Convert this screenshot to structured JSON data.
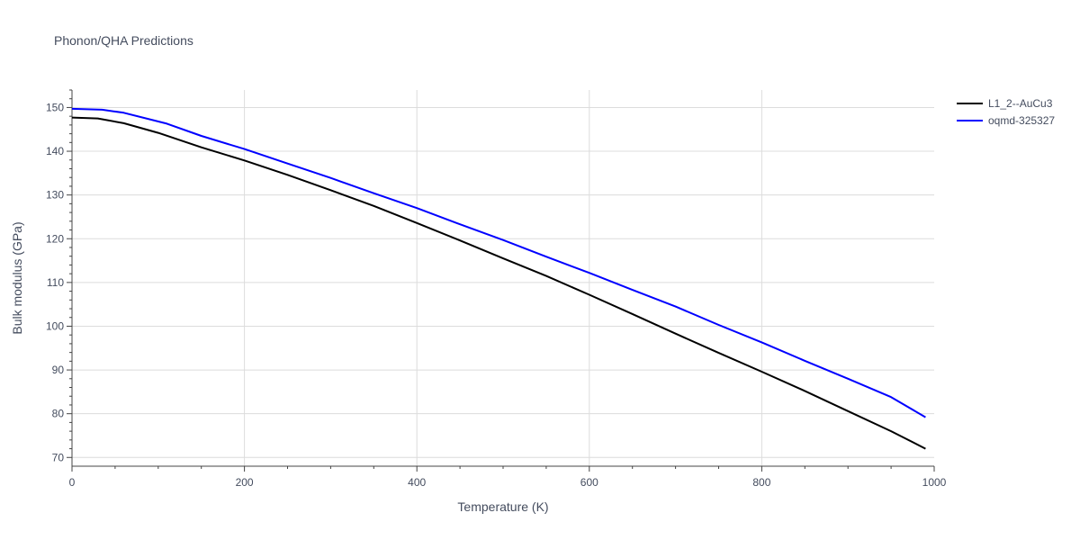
{
  "chart_data": {
    "type": "line",
    "title": "Phonon/QHA Predictions",
    "xlabel": "Temperature (K)",
    "ylabel": "Bulk modulus (GPa)",
    "xlim": [
      0,
      1000
    ],
    "ylim": [
      68,
      154
    ],
    "x_ticks": [
      0,
      200,
      400,
      600,
      800,
      1000
    ],
    "y_ticks": [
      70,
      80,
      90,
      100,
      110,
      120,
      130,
      140,
      150
    ],
    "grid": true,
    "legend_position": "top-right",
    "series": [
      {
        "name": "L1_2--AuCu3",
        "color": "#000000",
        "x": [
          0,
          30,
          60,
          100,
          150,
          200,
          250,
          300,
          350,
          400,
          450,
          500,
          550,
          600,
          650,
          700,
          750,
          800,
          850,
          900,
          950,
          990
        ],
        "y": [
          147.7,
          147.5,
          146.4,
          144.2,
          140.9,
          137.9,
          134.6,
          131.1,
          127.5,
          123.6,
          119.6,
          115.5,
          111.5,
          107.2,
          102.8,
          98.3,
          93.9,
          89.6,
          85.2,
          80.6,
          76.0,
          72.0
        ]
      },
      {
        "name": "oqmd-325327",
        "color": "#0000ff",
        "x": [
          0,
          35,
          60,
          110,
          150,
          200,
          250,
          300,
          350,
          400,
          450,
          500,
          550,
          600,
          650,
          700,
          750,
          800,
          850,
          900,
          950,
          990
        ],
        "y": [
          149.7,
          149.5,
          148.8,
          146.3,
          143.5,
          140.5,
          137.2,
          133.9,
          130.4,
          127.0,
          123.3,
          119.7,
          115.9,
          112.2,
          108.3,
          104.5,
          100.3,
          96.3,
          92.1,
          88.0,
          83.8,
          79.2
        ]
      }
    ]
  }
}
